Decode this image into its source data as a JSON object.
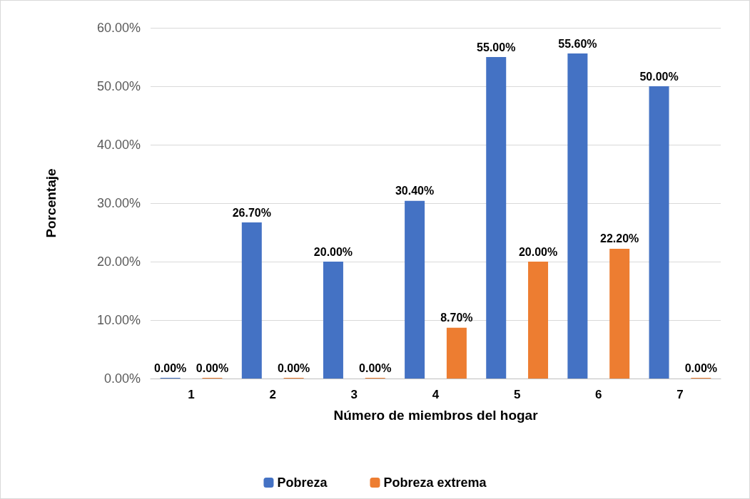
{
  "chart_data": {
    "type": "bar",
    "xlabel": "Número de miembros del hogar",
    "ylabel": "Porcentaje",
    "categories": [
      "1",
      "2",
      "3",
      "4",
      "5",
      "6",
      "7"
    ],
    "series": [
      {
        "name": "Pobreza",
        "color": "#4472c4",
        "values": [
          0,
          26.7,
          20,
          30.4,
          55,
          55.6,
          50
        ],
        "value_labels": [
          "0.00%",
          "26.70%",
          "20.00%",
          "30.40%",
          "55.00%",
          "55.60%",
          "50.00%"
        ]
      },
      {
        "name": "Pobreza extrema",
        "color": "#ed7d31",
        "values": [
          0,
          0,
          0,
          8.7,
          20,
          22.2,
          0
        ],
        "value_labels": [
          "0.00%",
          "0.00%",
          "0.00%",
          "8.70%",
          "20.00%",
          "22.20%",
          "0.00%"
        ]
      }
    ],
    "ylim": [
      0,
      60
    ],
    "yticks": [
      {
        "value": 0,
        "label": "0.00%"
      },
      {
        "value": 10,
        "label": "10.00%"
      },
      {
        "value": 20,
        "label": "20.00%"
      },
      {
        "value": 30,
        "label": "30.00%"
      },
      {
        "value": 40,
        "label": "40.00%"
      },
      {
        "value": 50,
        "label": "50.00%"
      },
      {
        "value": 60,
        "label": "60.00%"
      }
    ],
    "grid": "y",
    "legend": "bottom"
  }
}
